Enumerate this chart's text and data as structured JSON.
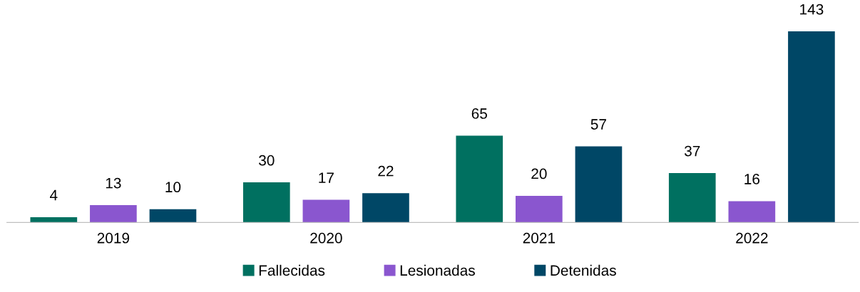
{
  "chart_data": {
    "type": "bar",
    "categories": [
      "2019",
      "2020",
      "2021",
      "2022"
    ],
    "series": [
      {
        "name": "Fallecidas",
        "color": "#007060",
        "values": [
          4,
          30,
          65,
          37
        ]
      },
      {
        "name": "Lesionadas",
        "color": "#8a56cf",
        "values": [
          13,
          17,
          20,
          16
        ]
      },
      {
        "name": "Detenidas",
        "color": "#004766",
        "values": [
          10,
          22,
          57,
          143
        ]
      }
    ],
    "data_labels": true,
    "legend": "bottom",
    "grid": false
  }
}
